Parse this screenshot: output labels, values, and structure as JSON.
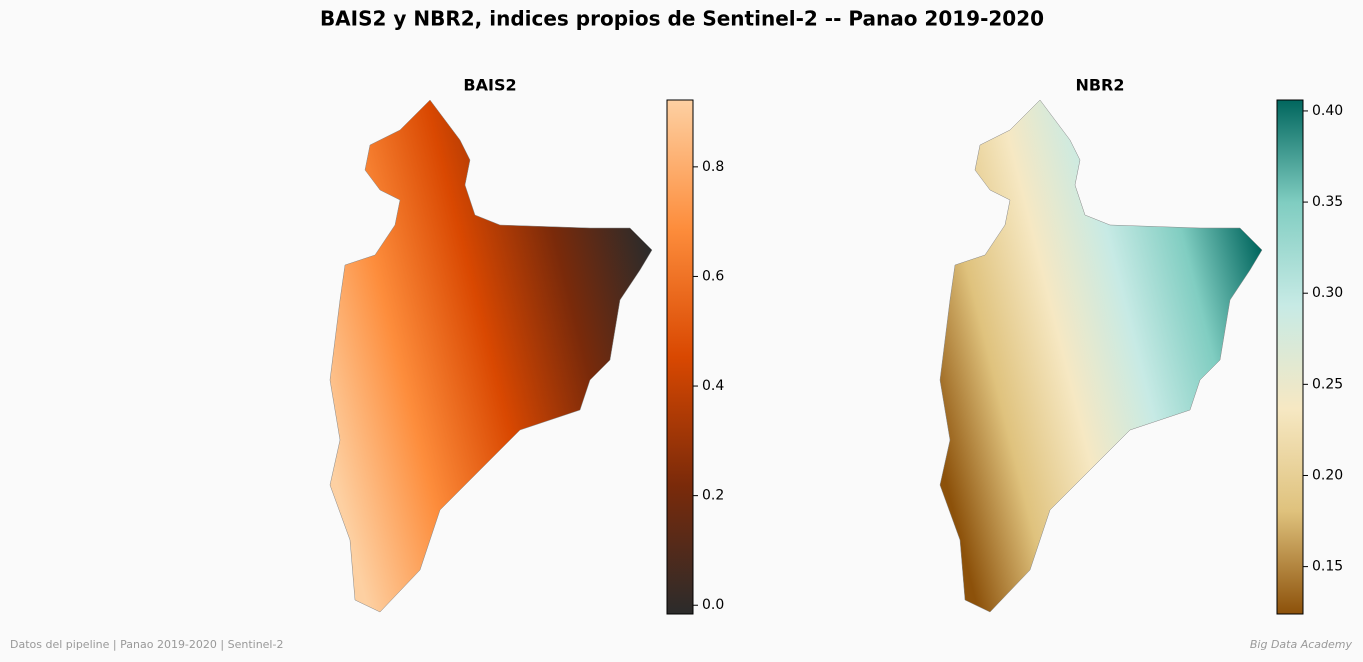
{
  "title": "BAIS2 y NBR2, indices propios de Sentinel-2 -- Panao 2019-2020",
  "footer_left": "Datos del pipeline | Panao 2019-2020 | Sentinel-2",
  "footer_right": "Big Data Academy",
  "chart_data": [
    {
      "type": "raster",
      "title": "BAIS2",
      "colormap": [
        "#2b2b2b",
        "#7a2a0a",
        "#d94801",
        "#fd8d3c",
        "#fdd0a2"
      ],
      "clim": [
        -0.016,
        0.922
      ],
      "ticks": [
        {
          "value": 0,
          "label": "0.0"
        },
        0.2,
        0.4,
        0.6,
        0.8
      ]
    },
    {
      "type": "raster",
      "title": "NBR2",
      "colormap": [
        "#8c510a",
        "#dfc27d",
        "#f6e8c3",
        "#c7eae5",
        "#80cdc1",
        "#01665e"
      ],
      "clim": [
        0.124,
        0.406
      ],
      "ticks": [
        0.15,
        {
          "value": 0.2,
          "label": "0.20"
        },
        0.25,
        {
          "value": 0.3,
          "label": "0.30"
        },
        0.35,
        {
          "value": 0.4,
          "label": "0.40"
        }
      ]
    }
  ]
}
